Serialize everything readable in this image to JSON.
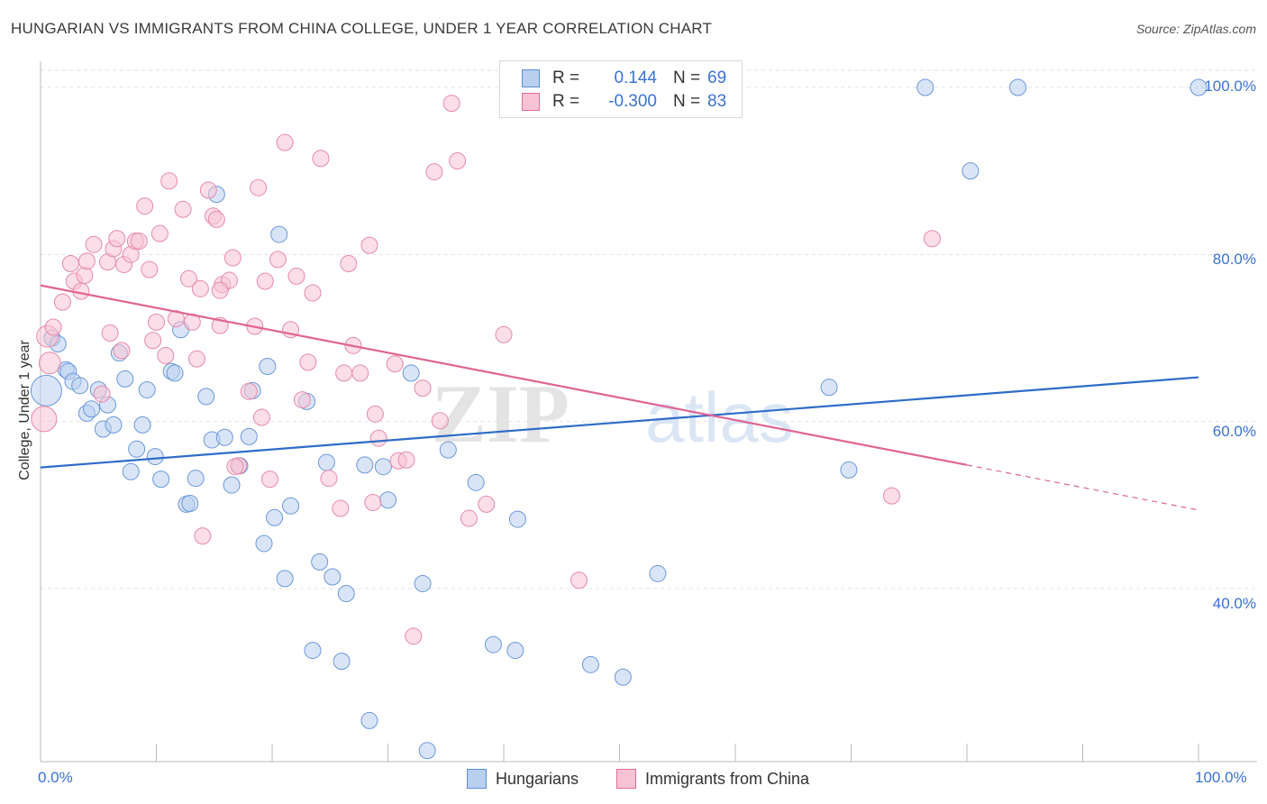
{
  "title": "HUNGARIAN VS IMMIGRANTS FROM CHINA COLLEGE, UNDER 1 YEAR CORRELATION CHART",
  "source": "Source: ZipAtlas.com",
  "watermark": {
    "zip": "ZIP",
    "atlas": "atlas"
  },
  "legend": {
    "r_label": "R =",
    "n_label": "N =",
    "series": [
      {
        "name": "Hungarians",
        "r": "0.144",
        "n": "69",
        "color": "#5b8ed6",
        "fill": "#b9cff0"
      },
      {
        "name": "Immigrants from China",
        "r": "-0.300",
        "n": "83",
        "color": "#e06d95",
        "fill": "#f7c3d4"
      }
    ]
  },
  "colors": {
    "blue_line": "#2f6cc8",
    "pink_line": "#e06594",
    "axis_text": "#3a73d0",
    "grid": "#e2e2e2"
  },
  "chart_data": {
    "type": "scatter",
    "title": "HUNGARIAN VS IMMIGRANTS FROM CHINA COLLEGE, UNDER 1 YEAR CORRELATION CHART",
    "xlabel": "",
    "ylabel": "College, Under 1 year",
    "xlim": [
      0,
      100
    ],
    "ylim": [
      20,
      102
    ],
    "x_tick_labels": [
      "0.0%",
      "100.0%"
    ],
    "y_ticks": [
      40,
      60,
      80,
      100
    ],
    "y_tick_labels": [
      "40.0%",
      "60.0%",
      "80.0%",
      "100.0%"
    ],
    "grid": true,
    "legend_position": "top-center",
    "series": [
      {
        "name": "Hungarians",
        "color": "#5b8ed6",
        "trend": {
          "x": [
            0,
            100
          ],
          "y": [
            54.5,
            65.3
          ]
        },
        "points": [
          [
            1.0,
            70.0
          ],
          [
            1.5,
            69.3
          ],
          [
            2.2,
            66.2
          ],
          [
            2.4,
            66.0
          ],
          [
            2.8,
            64.8
          ],
          [
            3.4,
            64.3
          ],
          [
            4.0,
            61.0
          ],
          [
            4.4,
            61.5
          ],
          [
            5.0,
            63.8
          ],
          [
            5.4,
            59.1
          ],
          [
            5.8,
            62.0
          ],
          [
            6.3,
            59.6
          ],
          [
            6.8,
            68.2
          ],
          [
            7.3,
            65.1
          ],
          [
            7.8,
            54.0
          ],
          [
            8.3,
            56.7
          ],
          [
            8.8,
            59.6
          ],
          [
            9.2,
            63.8
          ],
          [
            9.9,
            55.8
          ],
          [
            10.4,
            53.1
          ],
          [
            11.3,
            66.0
          ],
          [
            11.6,
            65.8
          ],
          [
            12.1,
            71.0
          ],
          [
            12.6,
            50.1
          ],
          [
            12.9,
            50.2
          ],
          [
            13.4,
            53.2
          ],
          [
            14.3,
            63.0
          ],
          [
            14.8,
            57.8
          ],
          [
            15.2,
            87.2
          ],
          [
            15.9,
            58.1
          ],
          [
            16.5,
            52.4
          ],
          [
            17.2,
            54.7
          ],
          [
            18.0,
            58.2
          ],
          [
            18.3,
            63.7
          ],
          [
            19.3,
            45.4
          ],
          [
            19.6,
            66.6
          ],
          [
            20.2,
            48.5
          ],
          [
            20.6,
            82.4
          ],
          [
            21.1,
            41.2
          ],
          [
            21.6,
            49.9
          ],
          [
            23.0,
            62.4
          ],
          [
            23.5,
            32.6
          ],
          [
            24.1,
            43.2
          ],
          [
            24.7,
            55.1
          ],
          [
            25.2,
            41.4
          ],
          [
            26.0,
            31.3
          ],
          [
            26.4,
            39.4
          ],
          [
            28.0,
            54.8
          ],
          [
            28.4,
            24.2
          ],
          [
            29.6,
            54.6
          ],
          [
            30.0,
            50.6
          ],
          [
            32.0,
            65.8
          ],
          [
            33.0,
            40.6
          ],
          [
            33.4,
            20.6
          ],
          [
            35.2,
            56.6
          ],
          [
            37.6,
            52.7
          ],
          [
            39.1,
            33.3
          ],
          [
            41.0,
            32.6
          ],
          [
            41.2,
            48.3
          ],
          [
            47.5,
            30.9
          ],
          [
            50.3,
            29.4
          ],
          [
            53.3,
            41.8
          ],
          [
            68.1,
            64.1
          ],
          [
            69.8,
            54.2
          ],
          [
            76.4,
            100.0
          ],
          [
            80.3,
            90.0
          ],
          [
            84.4,
            100.0
          ],
          [
            100.0,
            100.0
          ],
          [
            0.5,
            63.7
          ]
        ]
      },
      {
        "name": "Immigrants from China",
        "color": "#e06d95",
        "trend": {
          "x": [
            0,
            80
          ],
          "y": [
            76.3,
            54.8
          ]
        },
        "trend_dashed": {
          "x": [
            80,
            100
          ],
          "y": [
            54.8,
            49.4
          ]
        },
        "points": [
          [
            0.6,
            70.2
          ],
          [
            0.8,
            67.0
          ],
          [
            1.1,
            71.3
          ],
          [
            1.9,
            74.3
          ],
          [
            2.6,
            78.9
          ],
          [
            2.9,
            76.8
          ],
          [
            3.5,
            75.6
          ],
          [
            3.8,
            77.5
          ],
          [
            4.0,
            79.2
          ],
          [
            4.6,
            81.2
          ],
          [
            5.3,
            63.3
          ],
          [
            5.8,
            79.1
          ],
          [
            6.0,
            70.6
          ],
          [
            6.3,
            80.7
          ],
          [
            6.6,
            81.9
          ],
          [
            7.0,
            68.5
          ],
          [
            7.2,
            78.8
          ],
          [
            7.8,
            80.0
          ],
          [
            8.2,
            81.6
          ],
          [
            8.5,
            81.6
          ],
          [
            9.0,
            85.8
          ],
          [
            9.4,
            78.2
          ],
          [
            9.7,
            69.7
          ],
          [
            10.0,
            71.9
          ],
          [
            10.3,
            82.5
          ],
          [
            10.8,
            67.9
          ],
          [
            11.1,
            88.8
          ],
          [
            11.7,
            72.3
          ],
          [
            12.3,
            85.4
          ],
          [
            12.8,
            77.1
          ],
          [
            13.1,
            71.9
          ],
          [
            13.5,
            67.5
          ],
          [
            13.8,
            75.9
          ],
          [
            14.0,
            46.3
          ],
          [
            14.5,
            87.7
          ],
          [
            14.9,
            84.6
          ],
          [
            15.2,
            84.2
          ],
          [
            15.5,
            71.5
          ],
          [
            15.7,
            76.4
          ],
          [
            16.3,
            76.9
          ],
          [
            16.6,
            79.6
          ],
          [
            17.1,
            54.7
          ],
          [
            18.0,
            63.6
          ],
          [
            18.5,
            71.4
          ],
          [
            18.8,
            88.0
          ],
          [
            19.1,
            60.5
          ],
          [
            19.4,
            76.8
          ],
          [
            19.8,
            53.1
          ],
          [
            20.5,
            79.4
          ],
          [
            21.1,
            93.4
          ],
          [
            21.6,
            71.0
          ],
          [
            22.1,
            77.4
          ],
          [
            22.6,
            62.6
          ],
          [
            23.1,
            67.1
          ],
          [
            23.5,
            75.4
          ],
          [
            24.2,
            91.5
          ],
          [
            24.9,
            53.2
          ],
          [
            25.9,
            49.6
          ],
          [
            26.2,
            65.8
          ],
          [
            26.6,
            78.9
          ],
          [
            27.0,
            69.1
          ],
          [
            27.6,
            65.8
          ],
          [
            28.4,
            81.1
          ],
          [
            28.7,
            50.3
          ],
          [
            28.9,
            60.9
          ],
          [
            29.2,
            58.0
          ],
          [
            30.6,
            66.9
          ],
          [
            30.9,
            55.3
          ],
          [
            31.6,
            55.4
          ],
          [
            32.2,
            34.3
          ],
          [
            33.0,
            64.0
          ],
          [
            34.0,
            89.9
          ],
          [
            34.5,
            60.1
          ],
          [
            35.5,
            98.1
          ],
          [
            36.0,
            91.2
          ],
          [
            37.0,
            48.4
          ],
          [
            38.5,
            50.1
          ],
          [
            40.0,
            70.4
          ],
          [
            46.5,
            41.0
          ],
          [
            73.5,
            51.1
          ],
          [
            77.0,
            81.9
          ],
          [
            16.8,
            54.6
          ],
          [
            15.5,
            75.7
          ]
        ]
      }
    ]
  },
  "axes": {
    "y_label": "College, Under 1 year",
    "x_min_label": "0.0%",
    "x_max_label": "100.0%"
  }
}
